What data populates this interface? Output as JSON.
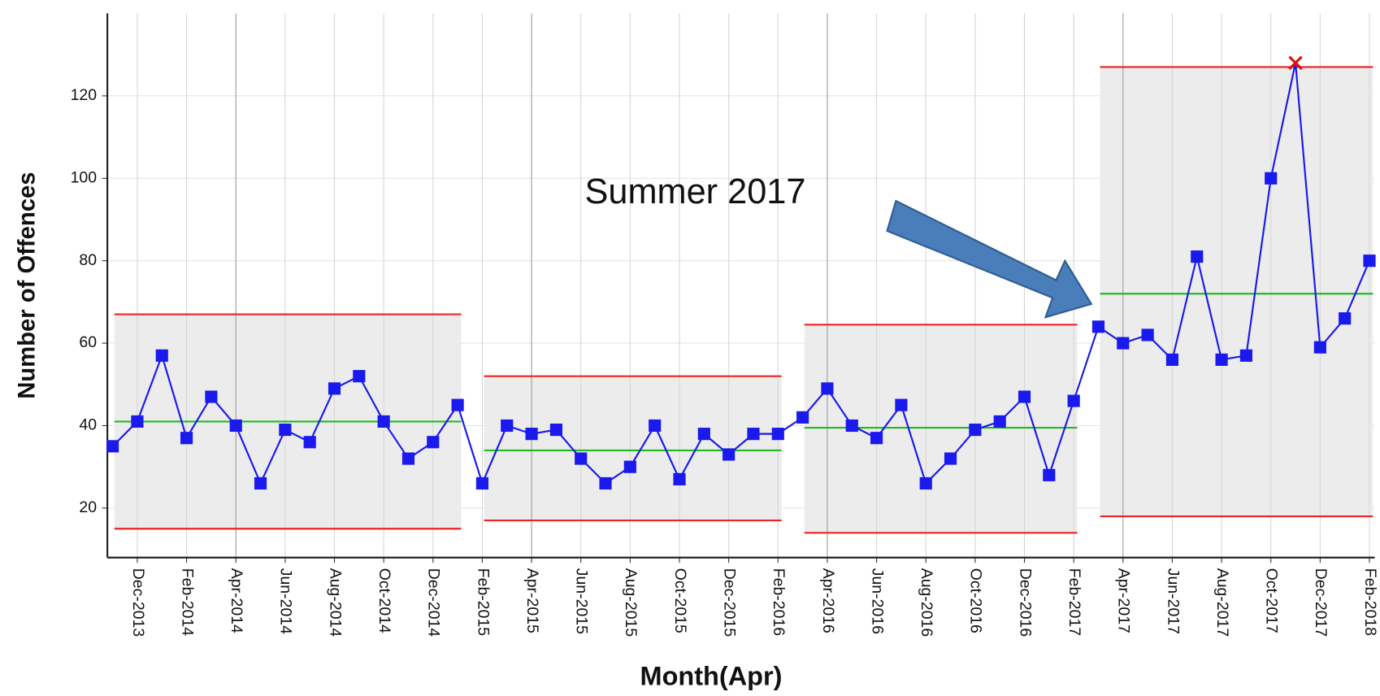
{
  "chart_data": {
    "type": "control",
    "y_label": "Number of Offences",
    "x_label": "Month(Apr)",
    "annotation": "Summer 2017",
    "categories": [
      null,
      "Dec-2013",
      null,
      "Feb-2014",
      null,
      "Apr-2014",
      null,
      "Jun-2014",
      null,
      "Aug-2014",
      null,
      "Oct-2014",
      null,
      "Dec-2014",
      null,
      "Feb-2015",
      null,
      "Apr-2015",
      null,
      "Jun-2015",
      null,
      "Aug-2015",
      null,
      "Oct-2015",
      null,
      "Dec-2015",
      null,
      "Feb-2016",
      null,
      "Apr-2016",
      null,
      "Jun-2016",
      null,
      "Aug-2016",
      null,
      "Oct-2016",
      null,
      "Dec-2016",
      null,
      "Feb-2017",
      null,
      "Apr-2017",
      null,
      "Jun-2017",
      null,
      "Aug-2017",
      null,
      "Oct-2017",
      null,
      "Dec-2017",
      null,
      "Feb-2018"
    ],
    "series": [
      {
        "name": "Offences",
        "color": "#1a1aee",
        "values": [
          35,
          41,
          57,
          37,
          47,
          40,
          26,
          39,
          36,
          49,
          52,
          41,
          32,
          36,
          45,
          26,
          40,
          38,
          39,
          32,
          26,
          30,
          40,
          27,
          38,
          33,
          38,
          38,
          42,
          49,
          40,
          37,
          45,
          26,
          32,
          39,
          41,
          47,
          28,
          46,
          64,
          60,
          62,
          56,
          81,
          56,
          57,
          100,
          128,
          59,
          66,
          80
        ]
      }
    ],
    "outliers": [
      48
    ],
    "outlier_color": "#dd1111",
    "phases": [
      {
        "start": 0,
        "end": 14,
        "center": 41,
        "ucl": 67,
        "lcl": 15
      },
      {
        "start": 15,
        "end": 27,
        "center": 34,
        "ucl": 52,
        "lcl": 17
      },
      {
        "start": 28,
        "end": 39,
        "center": 39.5,
        "ucl": 64.5,
        "lcl": 14
      },
      {
        "start": 40,
        "end": 51,
        "center": 72,
        "ucl": 127,
        "lcl": 18
      }
    ],
    "center_color": "#22bb22",
    "limit_color": "#ee2222",
    "band_color": "#ececec",
    "ylim": [
      8,
      140
    ],
    "yticks": [
      20,
      40,
      60,
      80,
      100,
      120
    ],
    "grid": true
  }
}
